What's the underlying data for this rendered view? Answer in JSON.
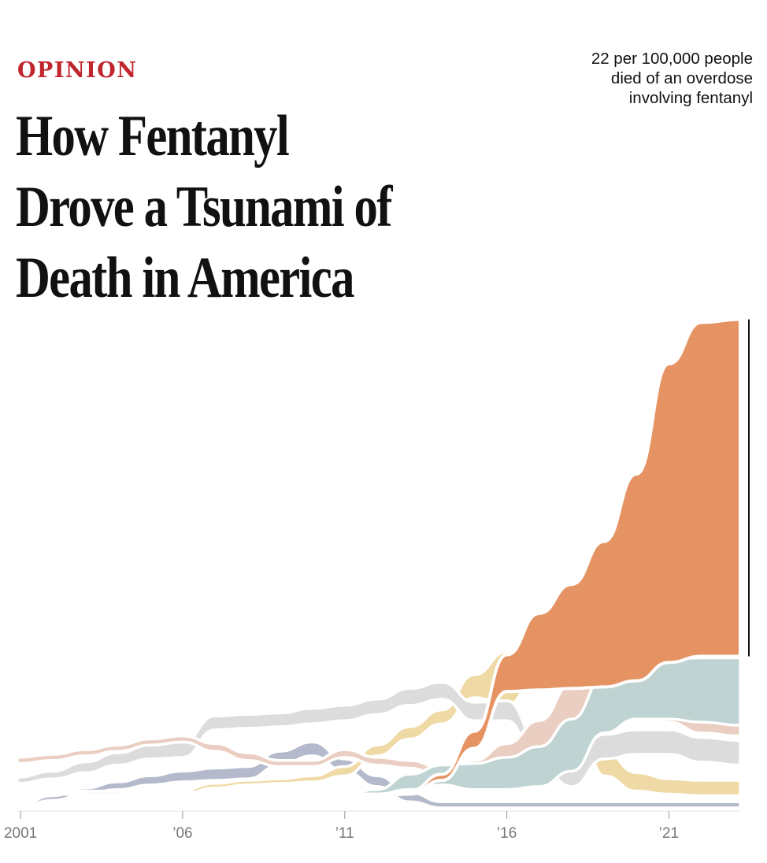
{
  "header": {
    "kicker": "OPINION",
    "headline_lines": [
      "How Fentanyl",
      "Drove a Tsunami of",
      "Death in America"
    ]
  },
  "annotation": {
    "lines": [
      "22 per 100,000 people",
      "died of an overdose",
      "involving fentanyl"
    ]
  },
  "chart_data": {
    "type": "area",
    "title": "",
    "xlabel": "",
    "ylabel": "",
    "x_ticks": [
      {
        "year": 2001,
        "label": "2001"
      },
      {
        "year": 2006,
        "label": "’06"
      },
      {
        "year": 2011,
        "label": "’11"
      },
      {
        "year": 2016,
        "label": "’16"
      },
      {
        "year": 2021,
        "label": "’21"
      }
    ],
    "x": [
      2000.9,
      2002,
      2003,
      2004,
      2005,
      2006,
      2007,
      2008,
      2009,
      2010,
      2011,
      2012,
      2013,
      2014,
      2015,
      2016,
      2017,
      2018,
      2019,
      2020,
      2021,
      2022,
      2023.2
    ],
    "y_unit": "deaths per 100,000",
    "legend": "none",
    "grid": false,
    "series": [
      {
        "color": "#e59363",
        "highlight": true,
        "baseline": [
          1.0,
          1.0,
          1.0,
          1.0,
          1.0,
          1.0,
          0.9,
          0.9,
          0.9,
          0.9,
          0.9,
          0.9,
          1.0,
          1.9,
          4.0,
          7.7,
          7.8,
          7.9,
          8.0,
          8.4,
          9.6,
          10.0,
          10.0
        ],
        "values": [
          0.0,
          0.0,
          0.0,
          0.0,
          0.1,
          0.2,
          0.1,
          0.1,
          0.1,
          0.1,
          0.1,
          0.1,
          0.2,
          0.4,
          1.1,
          2.4,
          5.0,
          6.8,
          9.5,
          13.5,
          19.5,
          21.8,
          22.0
        ]
      },
      {
        "color": "#bed3d2",
        "baseline": [
          1.0,
          1.0,
          1.0,
          1.0,
          1.0,
          1.0,
          1.0,
          1.0,
          1.0,
          0.9,
          0.9,
          1.0,
          1.3,
          1.6,
          1.3,
          1.3,
          1.5,
          2.5,
          5.0,
          5.9,
          5.9,
          5.7,
          5.5
        ],
        "values": [
          0.0,
          0.0,
          0.0,
          0.0,
          0.0,
          0.0,
          0.0,
          0.0,
          0.0,
          0.1,
          0.1,
          0.3,
          1.0,
          1.3,
          1.7,
          2.1,
          2.6,
          3.4,
          3.6,
          3.7,
          3.9,
          4.2,
          4.4
        ]
      },
      {
        "color": "#ebcec2",
        "baseline": [
          3.0,
          3.2,
          3.5,
          3.8,
          4.2,
          4.4,
          3.8,
          3.2,
          2.8,
          2.8,
          3.4,
          2.9,
          2.7,
          2.1,
          2.5,
          3.3,
          4.0,
          5.5,
          6.2,
          6.4,
          5.7,
          5.0,
          4.8
        ],
        "values": [
          0.4,
          0.4,
          0.4,
          0.4,
          0.4,
          0.4,
          0.5,
          0.5,
          0.4,
          0.4,
          0.5,
          0.5,
          0.5,
          0.6,
          0.7,
          1.0,
          1.8,
          2.7,
          3.0,
          3.4,
          3.6,
          3.9,
          4.0
        ]
      },
      {
        "color": "#dcdcdc",
        "baseline": [
          1.7,
          2.0,
          2.4,
          2.9,
          3.3,
          3.4,
          5.2,
          5.3,
          5.4,
          5.6,
          5.8,
          6.2,
          6.8,
          7.2,
          5.8,
          5.8,
          2.9,
          1.5,
          3.3,
          3.6,
          3.6,
          3.1,
          2.9
        ],
        "values": [
          0.4,
          0.5,
          0.7,
          0.8,
          0.9,
          1.0,
          0.9,
          0.9,
          0.9,
          1.0,
          1.0,
          1.0,
          1.1,
          1.1,
          1.2,
          1.3,
          1.4,
          1.5,
          1.6,
          1.6,
          1.6,
          1.6,
          1.6
        ]
      },
      {
        "color": "#efd9a4",
        "baseline": [
          1.0,
          1.0,
          1.0,
          1.0,
          1.0,
          1.0,
          1.4,
          1.6,
          1.7,
          1.8,
          2.2,
          3.5,
          4.6,
          5.6,
          7.3,
          6.8,
          9.0,
          7.9,
          2.2,
          1.2,
          1.0,
          0.9,
          0.9
        ],
        "values": [
          0.1,
          0.1,
          0.2,
          0.2,
          0.2,
          0.3,
          0.3,
          0.3,
          0.3,
          0.4,
          0.6,
          0.7,
          0.8,
          0.9,
          1.5,
          3.5,
          2.8,
          2.3,
          1.6,
          1.2,
          1.0,
          1.0,
          1.0
        ]
      },
      {
        "color": "#b4b9cb",
        "baseline": [
          0.1,
          0.6,
          1.0,
          1.3,
          1.6,
          1.8,
          1.9,
          2.0,
          2.9,
          3.5,
          2.5,
          1.5,
          0.5,
          0.1,
          0.1,
          0.1,
          0.1,
          0.1,
          0.1,
          0.1,
          0.1,
          0.1,
          0.1
        ],
        "values": [
          0.1,
          0.3,
          0.4,
          0.5,
          0.6,
          0.7,
          0.8,
          0.8,
          0.9,
          0.9,
          0.8,
          0.7,
          0.6,
          0.4,
          0.4,
          0.4,
          0.4,
          0.4,
          0.4,
          0.4,
          0.4,
          0.4,
          0.4
        ]
      }
    ]
  }
}
